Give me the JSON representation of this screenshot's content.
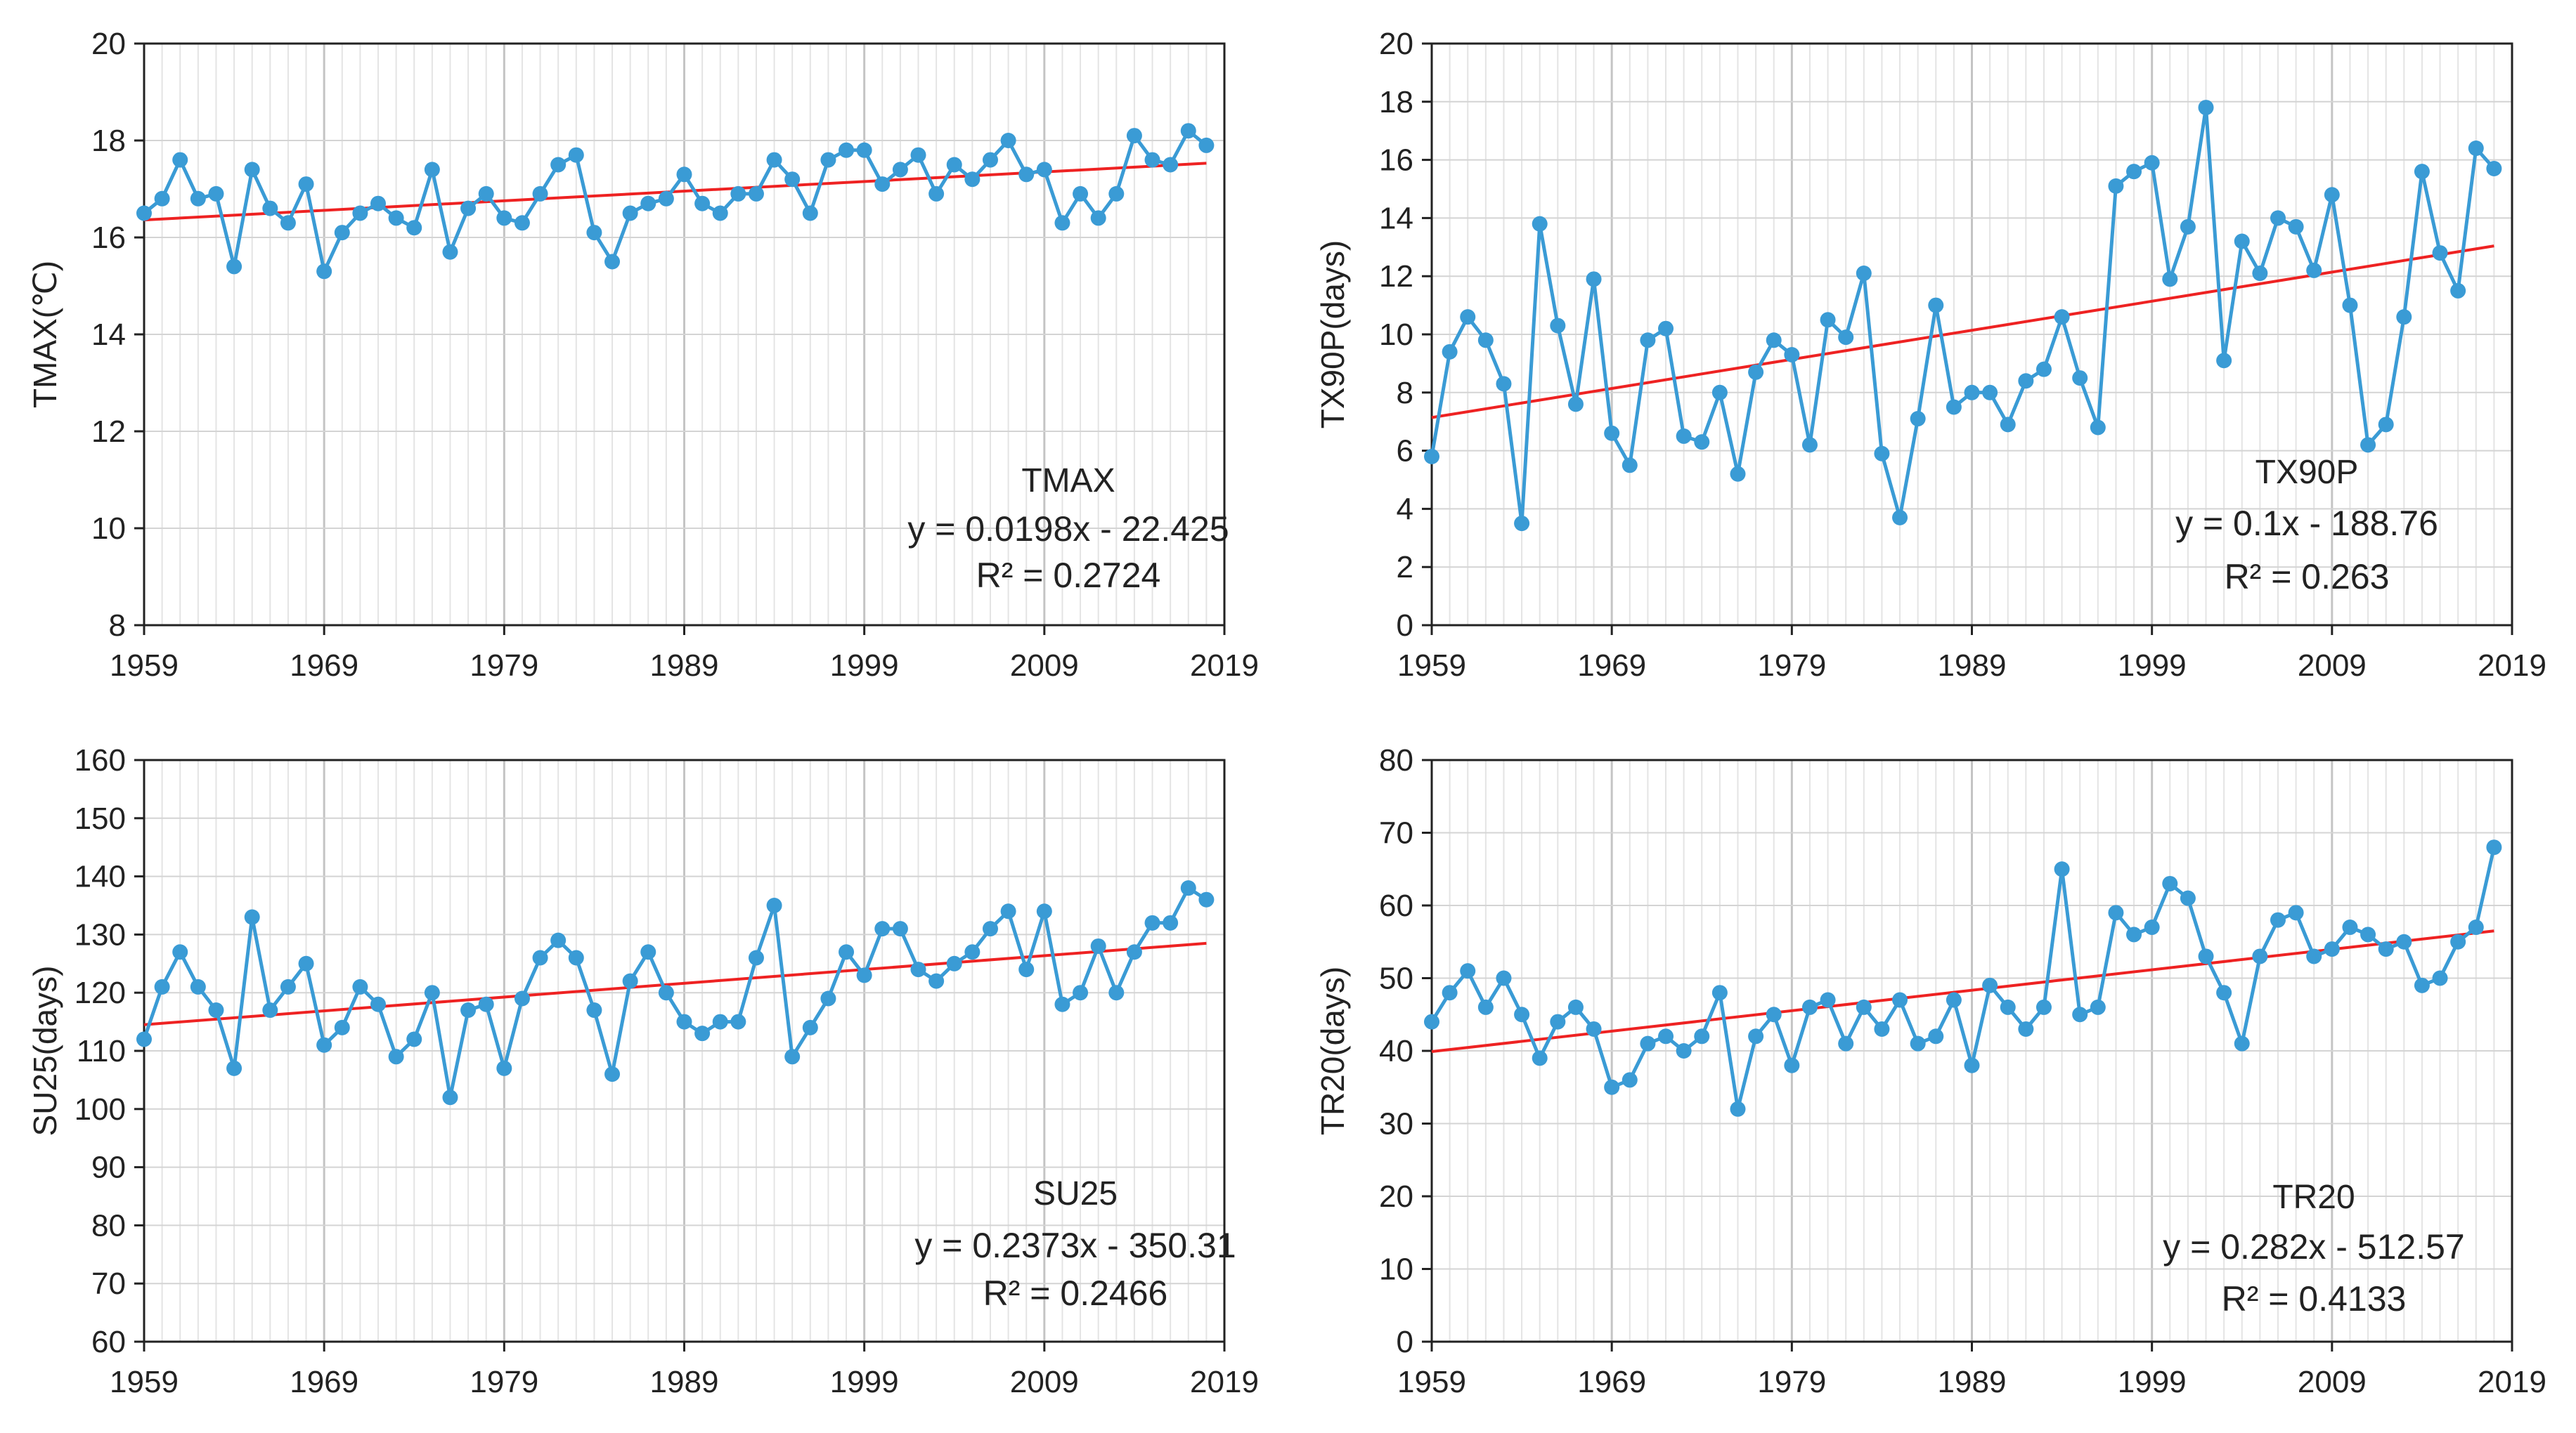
{
  "chart_data": [
    {
      "type": "line",
      "title": "",
      "xlabel": "",
      "ylabel": "TMAX(℃)",
      "xlim": [
        1959,
        2019
      ],
      "ylim": [
        8,
        20
      ],
      "ytick_step": 2,
      "xticks": [
        "1959",
        "1969",
        "1979",
        "1989",
        "1999",
        "2009",
        "2019"
      ],
      "yticks": [
        "8",
        "10",
        "12",
        "14",
        "16",
        "18",
        "20"
      ],
      "grid": true,
      "series": [
        {
          "x": [
            1959,
            1960,
            1961,
            1962,
            1963,
            1964,
            1965,
            1966,
            1967,
            1968,
            1969,
            1970,
            1971,
            1972,
            1973,
            1974,
            1975,
            1976,
            1977,
            1978,
            1979,
            1980,
            1981,
            1982,
            1983,
            1984,
            1985,
            1986,
            1987,
            1988,
            1989,
            1990,
            1991,
            1992,
            1993,
            1994,
            1995,
            1996,
            1997,
            1998,
            1999,
            2000,
            2001,
            2002,
            2003,
            2004,
            2005,
            2006,
            2007,
            2008,
            2009,
            2010,
            2011,
            2012,
            2013,
            2014,
            2015,
            2016,
            2017,
            2018
          ],
          "values": [
            16.5,
            16.8,
            17.6,
            16.8,
            16.9,
            15.4,
            17.4,
            16.6,
            16.3,
            17.1,
            15.3,
            16.1,
            16.5,
            16.7,
            16.4,
            16.2,
            17.4,
            15.7,
            16.6,
            16.9,
            16.4,
            16.3,
            16.9,
            17.5,
            17.7,
            16.1,
            15.5,
            16.5,
            16.7,
            16.8,
            17.3,
            16.7,
            16.5,
            16.9,
            16.9,
            17.6,
            17.2,
            16.5,
            17.6,
            17.8,
            17.8,
            17.1,
            17.4,
            17.7,
            16.9,
            17.5,
            17.2,
            17.6,
            18.0,
            17.3,
            17.4,
            16.3,
            16.9,
            16.4,
            16.9,
            18.1,
            17.6,
            17.5,
            18.2,
            17.9
          ],
          "color": "#3a9bd5"
        }
      ],
      "trendline": {
        "x": [
          1959,
          2018
        ],
        "y": [
          16.36,
          17.53
        ],
        "color": "#ee2222"
      },
      "annotation": [
        "TMAX",
        "y = 0.0198x - 22.425",
        "R² = 0.2724"
      ]
    },
    {
      "type": "line",
      "title": "",
      "xlabel": "",
      "ylabel": "TX90P(days)",
      "xlim": [
        1959,
        2019
      ],
      "ylim": [
        0,
        20
      ],
      "ytick_step": 2,
      "xticks": [
        "1959",
        "1969",
        "1979",
        "1989",
        "1999",
        "2009",
        "2019"
      ],
      "yticks": [
        "0",
        "2",
        "4",
        "6",
        "8",
        "10",
        "12",
        "14",
        "16",
        "18",
        "20"
      ],
      "grid": true,
      "series": [
        {
          "x": [
            1959,
            1960,
            1961,
            1962,
            1963,
            1964,
            1965,
            1966,
            1967,
            1968,
            1969,
            1970,
            1971,
            1972,
            1973,
            1974,
            1975,
            1976,
            1977,
            1978,
            1979,
            1980,
            1981,
            1982,
            1983,
            1984,
            1985,
            1986,
            1987,
            1988,
            1989,
            1990,
            1991,
            1992,
            1993,
            1994,
            1995,
            1996,
            1997,
            1998,
            1999,
            2000,
            2001,
            2002,
            2003,
            2004,
            2005,
            2006,
            2007,
            2008,
            2009,
            2010,
            2011,
            2012,
            2013,
            2014,
            2015,
            2016,
            2017,
            2018
          ],
          "values": [
            5.8,
            9.4,
            10.6,
            9.8,
            8.3,
            3.5,
            13.8,
            10.3,
            7.6,
            11.9,
            6.6,
            5.5,
            9.8,
            10.2,
            6.5,
            6.3,
            8.0,
            5.2,
            8.7,
            9.8,
            9.3,
            6.2,
            10.5,
            9.9,
            12.1,
            5.9,
            3.7,
            7.1,
            11.0,
            7.5,
            8.0,
            8.0,
            6.9,
            8.4,
            8.8,
            10.6,
            8.5,
            6.8,
            15.1,
            15.6,
            15.9,
            11.9,
            13.7,
            17.8,
            9.1,
            13.2,
            12.1,
            14.0,
            13.7,
            12.2,
            14.8,
            11.0,
            6.2,
            6.9,
            10.6,
            15.6,
            12.8,
            11.5,
            16.4,
            15.7
          ],
          "color": "#3a9bd5"
        }
      ],
      "trendline": {
        "x": [
          1959,
          2018
        ],
        "y": [
          7.14,
          13.04
        ],
        "color": "#ee2222"
      },
      "annotation": [
        "TX90P",
        "y = 0.1x - 188.76",
        "R² = 0.263"
      ]
    },
    {
      "type": "line",
      "title": "",
      "xlabel": "",
      "ylabel": "SU25(days)",
      "xlim": [
        1959,
        2019
      ],
      "ylim": [
        60,
        160
      ],
      "ytick_step": 10,
      "xticks": [
        "1959",
        "1969",
        "1979",
        "1989",
        "1999",
        "2009",
        "2019"
      ],
      "yticks": [
        "60",
        "70",
        "80",
        "90",
        "100",
        "110",
        "120",
        "130",
        "140",
        "150",
        "160"
      ],
      "grid": true,
      "series": [
        {
          "x": [
            1959,
            1960,
            1961,
            1962,
            1963,
            1964,
            1965,
            1966,
            1967,
            1968,
            1969,
            1970,
            1971,
            1972,
            1973,
            1974,
            1975,
            1976,
            1977,
            1978,
            1979,
            1980,
            1981,
            1982,
            1983,
            1984,
            1985,
            1986,
            1987,
            1988,
            1989,
            1990,
            1991,
            1992,
            1993,
            1994,
            1995,
            1996,
            1997,
            1998,
            1999,
            2000,
            2001,
            2002,
            2003,
            2004,
            2005,
            2006,
            2007,
            2008,
            2009,
            2010,
            2011,
            2012,
            2013,
            2014,
            2015,
            2016,
            2017,
            2018
          ],
          "values": [
            112,
            121,
            127,
            121,
            117,
            107,
            133,
            117,
            121,
            125,
            111,
            114,
            121,
            118,
            109,
            112,
            120,
            102,
            117,
            118,
            107,
            119,
            126,
            129,
            126,
            117,
            106,
            122,
            127,
            120,
            115,
            113,
            115,
            115,
            126,
            135,
            109,
            114,
            119,
            127,
            123,
            131,
            131,
            124,
            122,
            125,
            127,
            131,
            134,
            124,
            134,
            118,
            120,
            128,
            120,
            127,
            132,
            132,
            138,
            136
          ],
          "color": "#3a9bd5"
        }
      ],
      "trendline": {
        "x": [
          1959,
          2018
        ],
        "y": [
          114.5,
          128.5
        ],
        "color": "#ee2222"
      },
      "annotation": [
        "SU25",
        "y = 0.2373x - 350.31",
        "R² = 0.2466"
      ]
    },
    {
      "type": "line",
      "title": "",
      "xlabel": "",
      "ylabel": "TR20(days)",
      "xlim": [
        1959,
        2019
      ],
      "ylim": [
        0,
        80
      ],
      "ytick_step": 10,
      "xticks": [
        "1959",
        "1969",
        "1979",
        "1989",
        "1999",
        "2009",
        "2019"
      ],
      "yticks": [
        "0",
        "10",
        "20",
        "30",
        "40",
        "50",
        "60",
        "70",
        "80"
      ],
      "grid": true,
      "series": [
        {
          "x": [
            1959,
            1960,
            1961,
            1962,
            1963,
            1964,
            1965,
            1966,
            1967,
            1968,
            1969,
            1970,
            1971,
            1972,
            1973,
            1974,
            1975,
            1976,
            1977,
            1978,
            1979,
            1980,
            1981,
            1982,
            1983,
            1984,
            1985,
            1986,
            1987,
            1988,
            1989,
            1990,
            1991,
            1992,
            1993,
            1994,
            1995,
            1996,
            1997,
            1998,
            1999,
            2000,
            2001,
            2002,
            2003,
            2004,
            2005,
            2006,
            2007,
            2008,
            2009,
            2010,
            2011,
            2012,
            2013,
            2014,
            2015,
            2016,
            2017,
            2018
          ],
          "values": [
            44,
            48,
            51,
            46,
            50,
            45,
            39,
            44,
            46,
            43,
            35,
            36,
            41,
            42,
            40,
            42,
            48,
            32,
            42,
            45,
            38,
            46,
            47,
            41,
            46,
            43,
            47,
            41,
            42,
            47,
            38,
            49,
            46,
            43,
            46,
            65,
            45,
            46,
            59,
            56,
            57,
            63,
            61,
            53,
            48,
            41,
            53,
            58,
            59,
            53,
            54,
            57,
            56,
            54,
            55,
            49,
            50,
            55,
            57,
            68
          ],
          "color": "#3a9bd5"
        }
      ],
      "trendline": {
        "x": [
          1959,
          2018
        ],
        "y": [
          39.9,
          56.5
        ],
        "color": "#ee2222"
      },
      "annotation": [
        "TR20",
        "y = 0.282x - 512.57",
        "R² = 0.4133"
      ]
    }
  ]
}
